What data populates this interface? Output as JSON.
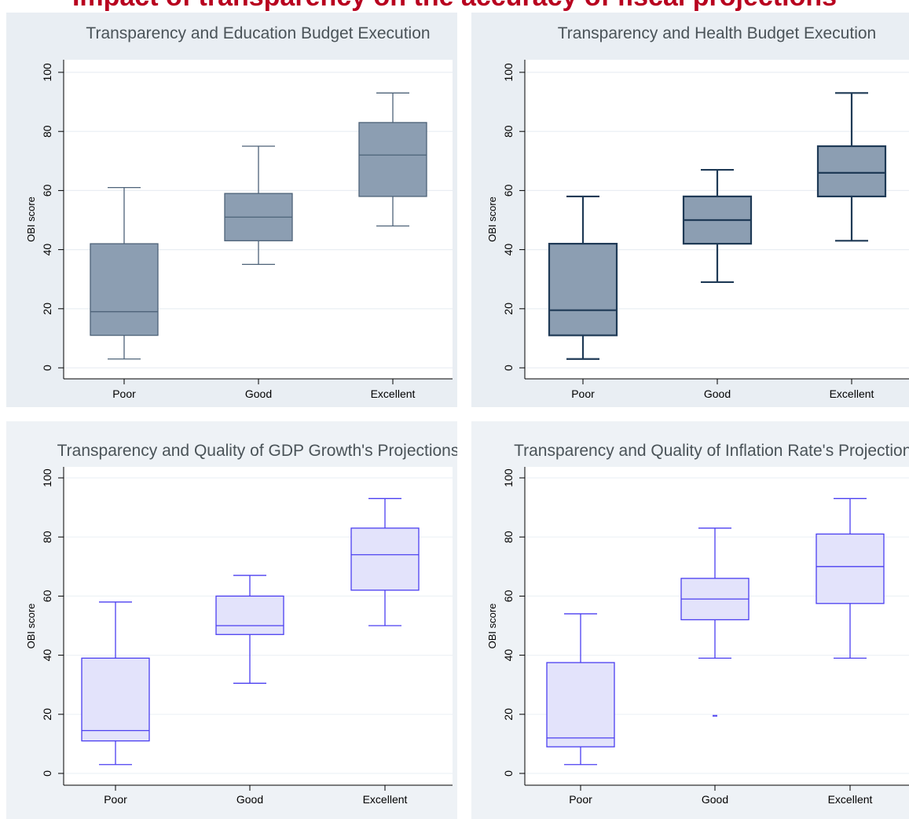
{
  "header": {
    "title": "Impact of transparency on the accuracy of fiscal projections"
  },
  "chart_data": [
    {
      "type": "box",
      "title": "Transparency and Education Budget Execution",
      "ylabel": "OBI score",
      "xlabel": "",
      "categories": [
        "Poor",
        "Good",
        "Excellent"
      ],
      "ylim": [
        0,
        100
      ],
      "yticks": [
        0,
        20,
        40,
        60,
        80,
        100
      ],
      "grid": true,
      "boxes": [
        {
          "category": "Poor",
          "min": 3,
          "q1": 11,
          "median": 19,
          "q3": 42,
          "max": 61,
          "outliers": []
        },
        {
          "category": "Good",
          "min": 35,
          "q1": 43,
          "median": 51,
          "q3": 59,
          "max": 75,
          "outliers": []
        },
        {
          "category": "Excellent",
          "min": 48,
          "q1": 58,
          "median": 72,
          "q3": 83,
          "max": 93,
          "outliers": []
        }
      ],
      "colors": {
        "box_fill": "#8c9eb2",
        "box_line": "#4d6278",
        "background": "#e9eef3"
      }
    },
    {
      "type": "box",
      "title": "Transparency and Health Budget Execution",
      "ylabel": "OBI score",
      "xlabel": "",
      "categories": [
        "Poor",
        "Good",
        "Excellent"
      ],
      "ylim": [
        0,
        100
      ],
      "yticks": [
        0,
        20,
        40,
        60,
        80,
        100
      ],
      "grid": true,
      "boxes": [
        {
          "category": "Poor",
          "min": 3,
          "q1": 11,
          "median": 19.5,
          "q3": 42,
          "max": 58,
          "outliers": []
        },
        {
          "category": "Good",
          "min": 29,
          "q1": 42,
          "median": 50,
          "q3": 58,
          "max": 67,
          "outliers": []
        },
        {
          "category": "Excellent",
          "min": 43,
          "q1": 58,
          "median": 66,
          "q3": 75,
          "max": 93,
          "outliers": []
        }
      ],
      "colors": {
        "box_fill": "#8c9eb2",
        "box_line": "#1f3a56",
        "background": "#e9eef3"
      }
    },
    {
      "type": "box",
      "title": "Transparency and Quality of GDP Growth's Projections",
      "ylabel": "OBI score",
      "xlabel": "",
      "categories": [
        "Poor",
        "Good",
        "Excellent"
      ],
      "ylim": [
        0,
        100
      ],
      "yticks": [
        0,
        20,
        40,
        60,
        80,
        100
      ],
      "grid": true,
      "boxes": [
        {
          "category": "Poor",
          "min": 3,
          "q1": 11,
          "median": 14.5,
          "q3": 39,
          "max": 58,
          "outliers": []
        },
        {
          "category": "Good",
          "min": 30.5,
          "q1": 47,
          "median": 50,
          "q3": 60,
          "max": 67,
          "outliers": []
        },
        {
          "category": "Excellent",
          "min": 50,
          "q1": 62,
          "median": 74,
          "q3": 83,
          "max": 93,
          "outliers": []
        }
      ],
      "colors": {
        "box_fill": "#e3e3fb",
        "box_line": "#4b3ff0",
        "background": "#eef2f6"
      }
    },
    {
      "type": "box",
      "title": "Transparency and Quality of Inflation Rate's Projections",
      "ylabel": "OBI score",
      "xlabel": "",
      "categories": [
        "Poor",
        "Good",
        "Excellent"
      ],
      "ylim": [
        0,
        100
      ],
      "yticks": [
        0,
        20,
        40,
        60,
        80,
        100
      ],
      "grid": true,
      "boxes": [
        {
          "category": "Poor",
          "min": 3,
          "q1": 9,
          "median": 12,
          "q3": 37.5,
          "max": 54,
          "outliers": []
        },
        {
          "category": "Good",
          "min": 39,
          "q1": 52,
          "median": 59,
          "q3": 66,
          "max": 83,
          "outliers": [
            19.5
          ]
        },
        {
          "category": "Excellent",
          "min": 39,
          "q1": 57.5,
          "median": 70,
          "q3": 81,
          "max": 93,
          "outliers": []
        }
      ],
      "colors": {
        "box_fill": "#e3e3fb",
        "box_line": "#4b3ff0",
        "background": "#eef2f6"
      }
    }
  ]
}
